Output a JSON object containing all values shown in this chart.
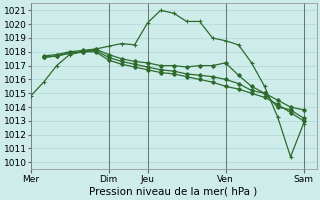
{
  "bg_color": "#ceecea",
  "grid_color": "#aed8d4",
  "line_color": "#2d6a2d",
  "xlabel": "Pression niveau de la mer( hPa )",
  "xlabel_fontsize": 7.5,
  "tick_fontsize": 6.5,
  "ylim": [
    1009.5,
    1021.5
  ],
  "yticks": [
    1010,
    1011,
    1012,
    1013,
    1014,
    1015,
    1016,
    1017,
    1018,
    1019,
    1020,
    1021
  ],
  "xtick_labels": [
    "Mer",
    "Dim",
    "Jeu",
    "Ven",
    "Sam"
  ],
  "xtick_positions": [
    0,
    6,
    9,
    15,
    21
  ],
  "vline_positions": [
    0,
    6,
    9,
    15,
    21
  ],
  "xlim": [
    0,
    22
  ],
  "n_points": 22,
  "line1_x": [
    0,
    1,
    2,
    3,
    4,
    5,
    6,
    7,
    8,
    9,
    10,
    11,
    12,
    13,
    14,
    15,
    16,
    17,
    18,
    19,
    20,
    21
  ],
  "line1_y": [
    1014.8,
    1015.8,
    1017.0,
    1017.8,
    1018.0,
    1018.2,
    1018.4,
    1018.6,
    1018.5,
    1020.1,
    1021.0,
    1020.8,
    1020.2,
    1020.2,
    1019.0,
    1018.8,
    1018.5,
    1017.2,
    1015.5,
    1013.3,
    1010.4,
    1012.8
  ],
  "line2_x": [
    1,
    2,
    3,
    4,
    5,
    6,
    7,
    8,
    9,
    10,
    11,
    12,
    13,
    14,
    15,
    16,
    17,
    18,
    19,
    20,
    21
  ],
  "line2_y": [
    1017.7,
    1017.8,
    1018.0,
    1018.1,
    1018.2,
    1017.8,
    1017.5,
    1017.3,
    1017.2,
    1017.0,
    1017.0,
    1016.9,
    1017.0,
    1017.0,
    1017.2,
    1016.3,
    1015.5,
    1015.0,
    1014.0,
    1013.8,
    1013.2
  ],
  "line3_x": [
    1,
    2,
    3,
    4,
    5,
    6,
    7,
    8,
    9,
    10,
    11,
    12,
    13,
    14,
    15,
    16,
    17,
    18,
    19,
    20,
    21
  ],
  "line3_y": [
    1017.6,
    1017.7,
    1017.9,
    1018.0,
    1018.1,
    1017.6,
    1017.3,
    1017.1,
    1016.9,
    1016.7,
    1016.6,
    1016.4,
    1016.3,
    1016.2,
    1016.0,
    1015.7,
    1015.2,
    1015.0,
    1014.5,
    1014.0,
    1013.8
  ],
  "line4_x": [
    1,
    2,
    3,
    4,
    5,
    6,
    7,
    8,
    9,
    10,
    11,
    12,
    13,
    14,
    15,
    16,
    17,
    18,
    19,
    20,
    21
  ],
  "line4_y": [
    1017.6,
    1017.7,
    1017.9,
    1018.0,
    1018.0,
    1017.4,
    1017.1,
    1016.9,
    1016.7,
    1016.5,
    1016.4,
    1016.2,
    1016.0,
    1015.8,
    1015.5,
    1015.3,
    1015.0,
    1014.7,
    1014.2,
    1013.6,
    1013.0
  ]
}
